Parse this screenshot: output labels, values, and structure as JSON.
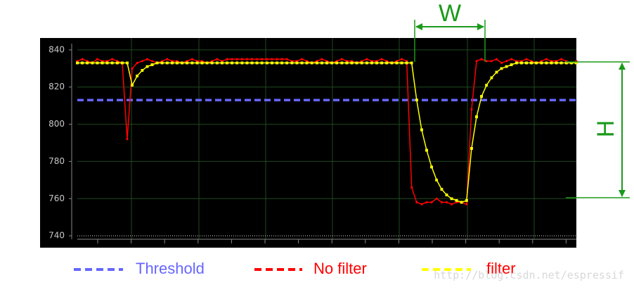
{
  "chart_data": {
    "type": "line",
    "ylim": [
      733.6,
      846.4
    ],
    "yticks": [
      740,
      760,
      780,
      800,
      820,
      840
    ],
    "grid": true,
    "threshold": {
      "name": "Threshold",
      "color": "#6666ff",
      "value": 813
    },
    "series": [
      {
        "name": "No filter",
        "color": "#ff0000",
        "label_color": "#ff0000",
        "values": [
          834,
          835,
          834,
          833,
          835,
          834,
          834,
          835,
          834,
          833,
          792,
          830,
          833,
          834,
          835,
          834,
          833,
          834,
          835,
          834,
          834,
          833,
          834,
          835,
          834,
          834,
          833,
          834,
          835,
          834,
          835,
          835,
          835,
          835,
          835,
          835,
          835,
          835,
          835,
          835,
          835,
          835,
          835,
          834,
          834,
          835,
          834,
          833,
          834,
          835,
          834,
          833,
          834,
          835,
          834,
          834,
          833,
          834,
          835,
          834,
          834,
          835,
          834,
          833,
          834,
          835,
          834,
          766,
          758,
          757,
          758,
          758,
          760,
          758,
          758,
          757,
          758,
          758,
          757,
          808,
          834,
          835,
          834,
          834,
          835,
          833,
          834,
          835,
          834,
          834,
          835,
          834,
          833,
          834,
          835,
          834,
          834,
          835,
          834,
          833,
          834
        ]
      },
      {
        "name": "filter",
        "color": "#ffff00",
        "label_color": "#ff0000",
        "values": [
          833,
          833,
          833,
          833,
          833,
          833,
          833,
          833,
          833,
          833,
          833,
          821,
          826,
          829,
          831,
          832,
          833,
          833,
          833,
          833,
          833,
          833,
          833,
          833,
          833,
          833,
          833,
          833,
          833,
          833,
          833,
          833,
          833,
          833,
          833,
          833,
          833,
          833,
          833,
          833,
          833,
          833,
          833,
          833,
          833,
          833,
          833,
          833,
          833,
          833,
          833,
          833,
          833,
          833,
          833,
          833,
          833,
          833,
          833,
          833,
          833,
          833,
          833,
          833,
          833,
          833,
          833,
          833,
          813,
          797,
          786,
          777,
          770,
          765,
          762,
          760,
          759,
          758,
          759,
          787,
          804,
          815,
          821,
          825,
          828,
          830,
          831,
          832,
          833,
          833,
          833,
          833,
          833,
          833,
          833,
          833,
          833,
          833,
          833,
          833,
          833
        ]
      }
    ],
    "annotations": [
      "W",
      "H"
    ],
    "watermark": "http://blog.csdn.net/espressif"
  }
}
